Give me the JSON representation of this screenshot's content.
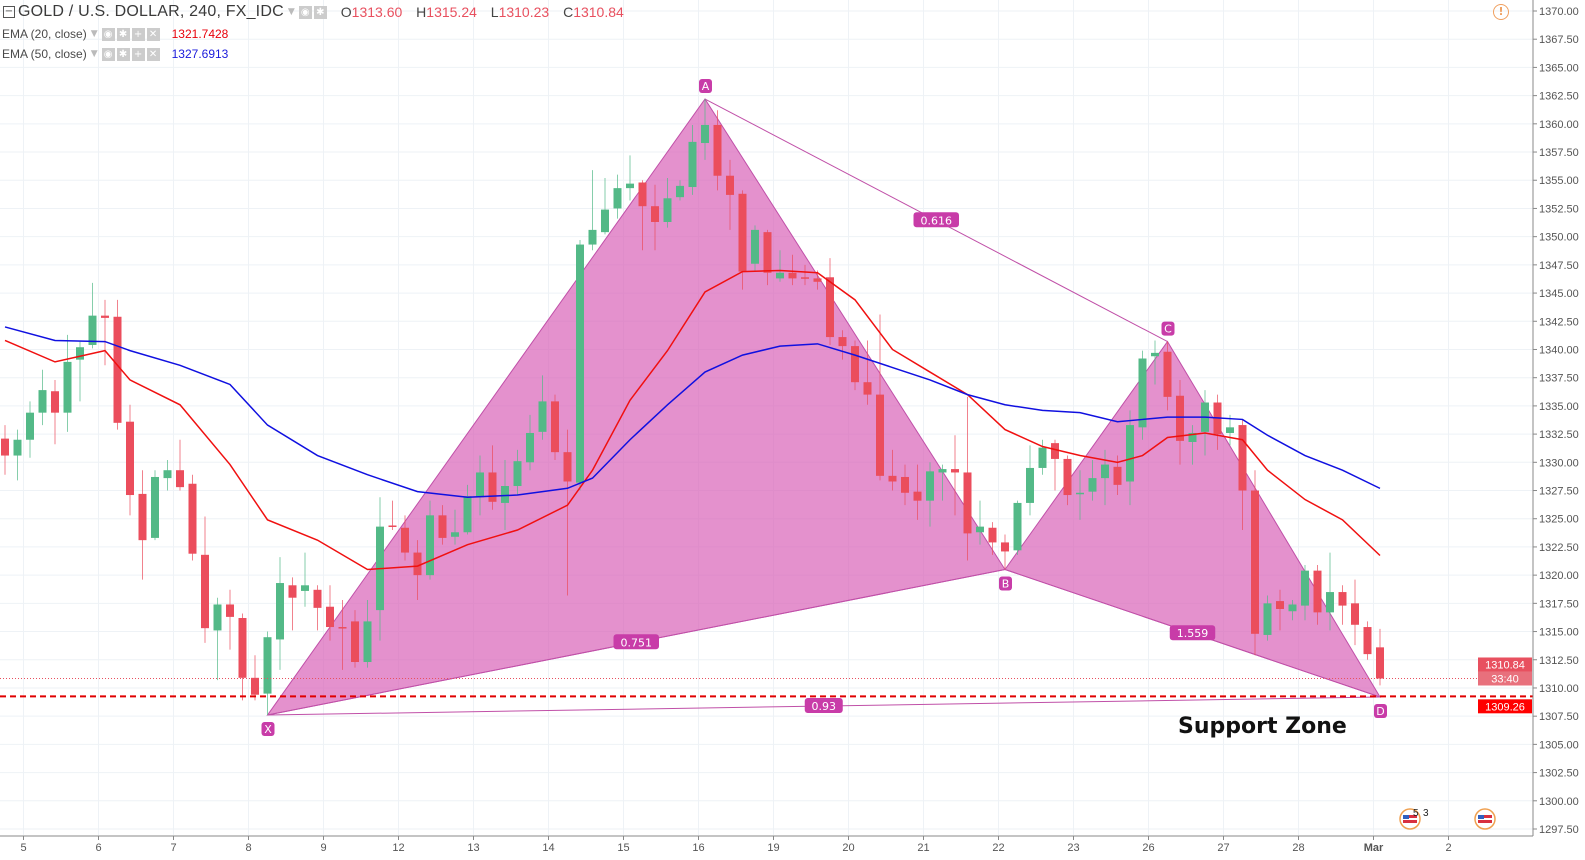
{
  "header": {
    "symbol_title": "GOLD / U.S. DOLLAR, 240, FX_IDC",
    "ohlc": {
      "o_label": "O",
      "o": "1313.60",
      "h_label": "H",
      "h": "1315.24",
      "l_label": "L",
      "l": "1310.23",
      "c_label": "C",
      "c": "1310.84"
    },
    "indicators": [
      {
        "label": "EMA (20, close)",
        "value": "1321.7428",
        "color": "#e8000b"
      },
      {
        "label": "EMA (50, close)",
        "value": "1327.6913",
        "color": "#1a1adb"
      }
    ],
    "warning_icon": "exclamation-circle-icon"
  },
  "colors": {
    "up": "#53b987",
    "down": "#eb4d5c",
    "ema20": "#f01010",
    "ema50": "#1010e0",
    "pattern_fill": "#d862b8",
    "pattern_line": "#c050a8",
    "support_line": "#e00000",
    "grid": "#eef2f6"
  },
  "annotation": {
    "support_text": "Support Zone"
  },
  "price_labels": {
    "last": "1310.84",
    "countdown": "33:40",
    "support": "1309.26"
  },
  "chart_data": {
    "type": "candlestick",
    "y_axis": {
      "min": 1297.5,
      "max": 1370,
      "step": 2.5,
      "ticks": [
        "1297.50",
        "1300.00",
        "1302.50",
        "1305.00",
        "1307.50",
        "1310.00",
        "1312.50",
        "1315.00",
        "1317.50",
        "1320.00",
        "1322.50",
        "1325.00",
        "1327.50",
        "1330.00",
        "1332.50",
        "1335.00",
        "1337.50",
        "1340.00",
        "1342.50",
        "1345.00",
        "1347.50",
        "1350.00",
        "1352.50",
        "1355.00",
        "1357.50",
        "1360.00",
        "1362.50",
        "1365.00",
        "1367.50",
        "1370.00"
      ]
    },
    "x_axis": {
      "bars_per_day": 6,
      "ticks": [
        {
          "label": "5",
          "bar": 1
        },
        {
          "label": "6",
          "bar": 7
        },
        {
          "label": "7",
          "bar": 13
        },
        {
          "label": "8",
          "bar": 19
        },
        {
          "label": "9",
          "bar": 25
        },
        {
          "label": "12",
          "bar": 31
        },
        {
          "label": "13",
          "bar": 37
        },
        {
          "label": "14",
          "bar": 43
        },
        {
          "label": "15",
          "bar": 49
        },
        {
          "label": "16",
          "bar": 55
        },
        {
          "label": "19",
          "bar": 61
        },
        {
          "label": "20",
          "bar": 67
        },
        {
          "label": "21",
          "bar": 73
        },
        {
          "label": "22",
          "bar": 79
        },
        {
          "label": "23",
          "bar": 85
        },
        {
          "label": "26",
          "bar": 91
        },
        {
          "label": "27",
          "bar": 97
        },
        {
          "label": "28",
          "bar": 103
        },
        {
          "label": "Mar",
          "bar": 109
        },
        {
          "label": "2",
          "bar": 115
        }
      ]
    },
    "candles": [
      [
        1332.1,
        1333.3,
        1328.9,
        1330.6
      ],
      [
        1330.6,
        1332.9,
        1328.4,
        1332.0
      ],
      [
        1332.0,
        1335.4,
        1330.4,
        1334.4
      ],
      [
        1334.4,
        1338.2,
        1333.3,
        1336.4
      ],
      [
        1336.3,
        1337.3,
        1331.6,
        1334.4
      ],
      [
        1334.4,
        1341.3,
        1332.7,
        1338.9
      ],
      [
        1339.1,
        1340.7,
        1335.4,
        1340.2
      ],
      [
        1340.4,
        1345.9,
        1340.1,
        1343.0
      ],
      [
        1343.0,
        1344.4,
        1338.6,
        1342.8
      ],
      [
        1342.9,
        1344.4,
        1332.9,
        1333.5
      ],
      [
        1333.6,
        1335.1,
        1325.3,
        1327.1
      ],
      [
        1327.2,
        1329.3,
        1319.6,
        1323.1
      ],
      [
        1323.3,
        1329.3,
        1323.1,
        1328.7
      ],
      [
        1328.6,
        1330.2,
        1327.5,
        1329.3
      ],
      [
        1329.3,
        1332.0,
        1327.5,
        1327.8
      ],
      [
        1328.1,
        1328.9,
        1321.3,
        1321.9
      ],
      [
        1321.8,
        1325.2,
        1314.0,
        1315.3
      ],
      [
        1315.1,
        1318.0,
        1310.7,
        1317.4
      ],
      [
        1317.4,
        1318.7,
        1313.4,
        1316.3
      ],
      [
        1316.2,
        1316.6,
        1308.9,
        1310.9
      ],
      [
        1310.9,
        1312.9,
        1308.9,
        1309.4
      ],
      [
        1309.5,
        1315.0,
        1307.6,
        1314.5
      ],
      [
        1314.3,
        1321.6,
        1311.6,
        1319.3
      ],
      [
        1319.1,
        1319.8,
        1315.1,
        1318.0
      ],
      [
        1318.6,
        1322.0,
        1317.2,
        1319.1
      ],
      [
        1318.7,
        1319.1,
        1315.1,
        1317.1
      ],
      [
        1317.2,
        1319.1,
        1314.2,
        1315.4
      ],
      [
        1315.4,
        1317.8,
        1311.6,
        1315.3
      ],
      [
        1315.9,
        1316.9,
        1311.8,
        1312.3
      ],
      [
        1312.3,
        1317.8,
        1311.8,
        1315.9
      ],
      [
        1316.9,
        1326.9,
        1314.2,
        1324.3
      ],
      [
        1324.4,
        1326.6,
        1324.0,
        1324.3
      ],
      [
        1324.2,
        1325.3,
        1321.3,
        1322.0
      ],
      [
        1322.0,
        1323.1,
        1317.8,
        1320.0
      ],
      [
        1320.0,
        1326.6,
        1319.6,
        1325.3
      ],
      [
        1325.3,
        1326.2,
        1322.7,
        1323.3
      ],
      [
        1323.4,
        1325.8,
        1322.7,
        1323.8
      ],
      [
        1323.8,
        1328.0,
        1323.6,
        1327.0
      ],
      [
        1326.9,
        1330.6,
        1325.3,
        1329.1
      ],
      [
        1329.1,
        1331.5,
        1325.8,
        1326.5
      ],
      [
        1326.4,
        1330.2,
        1324.0,
        1327.9
      ],
      [
        1327.9,
        1331.1,
        1327.1,
        1330.1
      ],
      [
        1330.0,
        1334.2,
        1329.3,
        1332.6
      ],
      [
        1332.7,
        1337.7,
        1332.0,
        1335.4
      ],
      [
        1335.4,
        1336.0,
        1330.2,
        1330.9
      ],
      [
        1330.9,
        1332.9,
        1318.2,
        1328.3
      ],
      [
        1328.2,
        1349.7,
        1327.5,
        1349.3
      ],
      [
        1349.3,
        1355.9,
        1348.8,
        1350.6
      ],
      [
        1350.4,
        1355.2,
        1350.2,
        1352.4
      ],
      [
        1352.5,
        1355.5,
        1351.6,
        1354.3
      ],
      [
        1354.3,
        1357.2,
        1353.2,
        1354.7
      ],
      [
        1354.8,
        1355.0,
        1348.8,
        1352.7
      ],
      [
        1352.7,
        1354.6,
        1348.8,
        1351.3
      ],
      [
        1351.3,
        1355.2,
        1350.8,
        1353.4
      ],
      [
        1353.5,
        1355.0,
        1353.2,
        1354.5
      ],
      [
        1354.4,
        1359.9,
        1353.7,
        1358.4
      ],
      [
        1358.3,
        1362.2,
        1356.8,
        1359.9
      ],
      [
        1359.9,
        1361.2,
        1354.1,
        1355.4
      ],
      [
        1355.4,
        1356.8,
        1350.6,
        1353.7
      ],
      [
        1353.8,
        1354.1,
        1345.3,
        1346.9
      ],
      [
        1347.6,
        1351.0,
        1347.0,
        1350.6
      ],
      [
        1350.4,
        1350.6,
        1345.7,
        1346.8
      ],
      [
        1346.3,
        1348.8,
        1346.0,
        1346.8
      ],
      [
        1346.8,
        1348.4,
        1345.7,
        1346.3
      ],
      [
        1346.4,
        1347.5,
        1345.7,
        1346.3
      ],
      [
        1346.3,
        1347.0,
        1345.3,
        1346.0
      ],
      [
        1346.4,
        1348.1,
        1340.4,
        1341.1
      ],
      [
        1341.1,
        1341.7,
        1339.1,
        1340.3
      ],
      [
        1340.3,
        1340.8,
        1336.4,
        1337.1
      ],
      [
        1337.1,
        1340.8,
        1335.1,
        1336.0
      ],
      [
        1336.0,
        1343.1,
        1328.4,
        1328.8
      ],
      [
        1328.8,
        1331.1,
        1327.5,
        1328.3
      ],
      [
        1328.7,
        1329.8,
        1326.2,
        1327.3
      ],
      [
        1327.4,
        1329.8,
        1324.9,
        1326.6
      ],
      [
        1326.6,
        1330.0,
        1324.3,
        1329.2
      ],
      [
        1329.1,
        1329.8,
        1326.6,
        1329.4
      ],
      [
        1329.4,
        1332.4,
        1325.3,
        1329.1
      ],
      [
        1329.1,
        1335.8,
        1321.3,
        1323.7
      ],
      [
        1323.8,
        1326.6,
        1322.7,
        1324.3
      ],
      [
        1324.2,
        1324.7,
        1321.8,
        1322.9
      ],
      [
        1322.9,
        1323.6,
        1320.5,
        1322.1
      ],
      [
        1322.2,
        1326.6,
        1321.8,
        1326.4
      ],
      [
        1326.4,
        1331.5,
        1325.3,
        1329.5
      ],
      [
        1329.5,
        1332.0,
        1328.9,
        1331.3
      ],
      [
        1331.7,
        1332.0,
        1327.5,
        1330.3
      ],
      [
        1330.3,
        1330.6,
        1326.2,
        1327.1
      ],
      [
        1327.2,
        1329.3,
        1324.9,
        1327.3
      ],
      [
        1327.4,
        1330.2,
        1326.6,
        1328.6
      ],
      [
        1328.6,
        1331.1,
        1326.2,
        1329.8
      ],
      [
        1329.6,
        1330.6,
        1327.1,
        1328.0
      ],
      [
        1328.3,
        1334.6,
        1326.2,
        1333.3
      ],
      [
        1333.1,
        1339.9,
        1332.0,
        1339.2
      ],
      [
        1339.4,
        1340.8,
        1336.9,
        1339.7
      ],
      [
        1339.8,
        1340.7,
        1334.6,
        1335.8
      ],
      [
        1335.9,
        1337.3,
        1329.8,
        1331.9
      ],
      [
        1331.8,
        1333.3,
        1329.8,
        1332.6
      ],
      [
        1332.7,
        1336.4,
        1330.6,
        1335.3
      ],
      [
        1335.3,
        1336.0,
        1331.1,
        1332.5
      ],
      [
        1332.6,
        1334.2,
        1331.5,
        1333.1
      ],
      [
        1333.3,
        1333.8,
        1324.0,
        1327.5
      ],
      [
        1327.5,
        1329.3,
        1312.9,
        1314.8
      ],
      [
        1314.7,
        1318.2,
        1314.2,
        1317.5
      ],
      [
        1317.7,
        1318.7,
        1315.1,
        1317.0
      ],
      [
        1316.8,
        1317.8,
        1316.0,
        1317.4
      ],
      [
        1317.3,
        1320.9,
        1316.0,
        1320.4
      ],
      [
        1320.4,
        1320.9,
        1315.6,
        1316.7
      ],
      [
        1316.7,
        1322.0,
        1315.1,
        1318.5
      ],
      [
        1318.5,
        1319.1,
        1315.6,
        1317.3
      ],
      [
        1317.5,
        1319.6,
        1313.8,
        1315.6
      ],
      [
        1315.4,
        1315.9,
        1312.5,
        1313.0
      ],
      [
        1313.6,
        1315.24,
        1310.23,
        1310.84
      ]
    ],
    "candle_fields": [
      "open",
      "high",
      "low",
      "close"
    ],
    "ema20": {
      "name": "EMA (20, close)",
      "points": [
        [
          0,
          1340.8
        ],
        [
          4,
          1338.9
        ],
        [
          8,
          1339.9
        ],
        [
          10,
          1337.3
        ],
        [
          14,
          1335.1
        ],
        [
          18,
          1329.8
        ],
        [
          21,
          1324.9
        ],
        [
          25,
          1323.1
        ],
        [
          29,
          1320.5
        ],
        [
          33,
          1320.8
        ],
        [
          37,
          1322.7
        ],
        [
          41,
          1324.0
        ],
        [
          45,
          1326.2
        ],
        [
          47,
          1329.3
        ],
        [
          50,
          1335.5
        ],
        [
          53,
          1339.9
        ],
        [
          56,
          1345.1
        ],
        [
          59,
          1346.9
        ],
        [
          62,
          1347.0
        ],
        [
          65,
          1346.8
        ],
        [
          68,
          1344.4
        ],
        [
          71,
          1340.0
        ],
        [
          74,
          1338.0
        ],
        [
          77,
          1336.0
        ],
        [
          80,
          1332.9
        ],
        [
          83,
          1331.4
        ],
        [
          86,
          1330.6
        ],
        [
          89,
          1330.0
        ],
        [
          91,
          1330.6
        ],
        [
          93,
          1332.2
        ],
        [
          96,
          1332.6
        ],
        [
          99,
          1332.0
        ],
        [
          101,
          1329.3
        ],
        [
          104,
          1326.7
        ],
        [
          107,
          1324.9
        ],
        [
          110,
          1321.74
        ]
      ]
    },
    "ema50": {
      "name": "EMA (50, close)",
      "points": [
        [
          0,
          1342.0
        ],
        [
          4,
          1340.8
        ],
        [
          8,
          1340.7
        ],
        [
          10,
          1339.9
        ],
        [
          14,
          1338.6
        ],
        [
          18,
          1336.9
        ],
        [
          21,
          1333.3
        ],
        [
          25,
          1330.6
        ],
        [
          29,
          1328.9
        ],
        [
          33,
          1327.4
        ],
        [
          37,
          1326.9
        ],
        [
          41,
          1327.1
        ],
        [
          45,
          1327.7
        ],
        [
          47,
          1328.6
        ],
        [
          50,
          1332.0
        ],
        [
          53,
          1335.1
        ],
        [
          56,
          1338.0
        ],
        [
          59,
          1339.5
        ],
        [
          62,
          1340.3
        ],
        [
          65,
          1340.5
        ],
        [
          68,
          1339.5
        ],
        [
          71,
          1338.4
        ],
        [
          74,
          1337.3
        ],
        [
          77,
          1336.0
        ],
        [
          80,
          1335.1
        ],
        [
          83,
          1334.6
        ],
        [
          86,
          1334.4
        ],
        [
          89,
          1333.6
        ],
        [
          91,
          1333.8
        ],
        [
          93,
          1334.0
        ],
        [
          96,
          1334.0
        ],
        [
          99,
          1333.8
        ],
        [
          101,
          1332.4
        ],
        [
          104,
          1330.6
        ],
        [
          107,
          1329.3
        ],
        [
          110,
          1327.69
        ]
      ]
    },
    "pattern": {
      "points": [
        {
          "label": "X",
          "bar": 21,
          "price": 1307.6
        },
        {
          "label": "A",
          "bar": 56,
          "price": 1362.2
        },
        {
          "label": "B",
          "bar": 80,
          "price": 1320.5
        },
        {
          "label": "C",
          "bar": 93,
          "price": 1340.7
        },
        {
          "label": "D",
          "bar": 110,
          "price": 1309.2
        }
      ],
      "ratios": [
        {
          "label": "0.751",
          "from": "X",
          "to": "B"
        },
        {
          "label": "0.616",
          "from": "A",
          "to": "C"
        },
        {
          "label": "1.559",
          "from": "B",
          "to": "D"
        },
        {
          "label": "0.93",
          "from": "X",
          "to": "D"
        }
      ]
    },
    "horizontal_lines": [
      {
        "price": 1310.84,
        "style": "dotted"
      },
      {
        "price": 1309.26,
        "style": "dashed"
      }
    ],
    "events": [
      {
        "bar": 112,
        "icon": "us-flag-icon",
        "counts": [
          "5",
          "3"
        ]
      },
      {
        "bar": 118,
        "icon": "us-flag-icon"
      }
    ]
  }
}
